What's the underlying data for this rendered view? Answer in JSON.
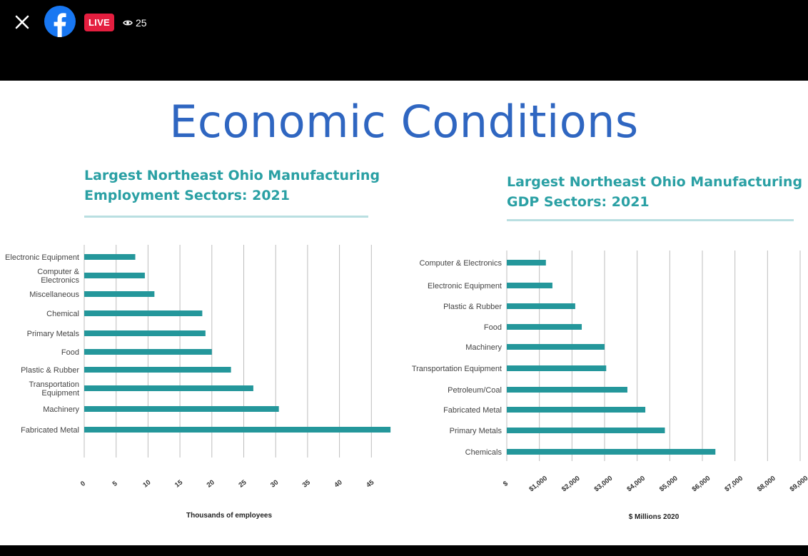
{
  "live_stream": {
    "live_badge": "LIVE",
    "viewer_count": "25"
  },
  "slide": {
    "title": "Economic Conditions"
  },
  "colors": {
    "bar": "#24979b",
    "grid": "#bdbdbd",
    "title": "#2f66c1",
    "subtitle": "#2aa0a4"
  },
  "icons": {
    "close": "close-icon",
    "logo": "facebook-logo-icon",
    "viewers": "eye-icon"
  },
  "chart_data": [
    {
      "type": "bar",
      "orientation": "horizontal",
      "title_lines": [
        "Largest Northeast Ohio Manufacturing",
        "Employment Sectors: 2021"
      ],
      "categories": [
        [
          "Electronic Equipment"
        ],
        [
          "Computer &",
          "Electronics"
        ],
        [
          "Miscellaneous"
        ],
        [
          "Chemical"
        ],
        [
          "Primary Metals"
        ],
        [
          "Food"
        ],
        [
          "Plastic & Rubber"
        ],
        [
          "Transportation",
          "Equipment"
        ],
        [
          "Machinery"
        ],
        [
          "Fabricated Metal"
        ]
      ],
      "values": [
        8,
        9.5,
        11,
        18.5,
        19,
        20,
        23,
        26.5,
        30.5,
        48
      ],
      "xlim": [
        0,
        50
      ],
      "ticks": [
        "0",
        "5",
        "10",
        "15",
        "20",
        "25",
        "30",
        "35",
        "40",
        "45"
      ],
      "xlabel": "Thousands of employees",
      "grid": true
    },
    {
      "type": "bar",
      "orientation": "horizontal",
      "title_lines": [
        "Largest Northeast Ohio Manufacturing",
        "GDP Sectors: 2021"
      ],
      "categories": [
        [
          "Computer & Electronics"
        ],
        [
          "Electronic Equipment"
        ],
        [
          "Plastic & Rubber"
        ],
        [
          "Food"
        ],
        [
          "Machinery"
        ],
        [
          "Transportation Equipment"
        ],
        [
          "Petroleum/Coal"
        ],
        [
          "Fabricated Metal"
        ],
        [
          "Primary Metals"
        ],
        [
          "Chemicals"
        ]
      ],
      "values": [
        1200,
        1400,
        2100,
        2300,
        3000,
        3050,
        3700,
        4250,
        4850,
        6400
      ],
      "xlim": [
        0,
        9000
      ],
      "ticks": [
        "$",
        "$1,000",
        "$2,000",
        "$3,000",
        "$4,000",
        "$5,000",
        "$6,000",
        "$7,000",
        "$8,000",
        "$9,000"
      ],
      "xlabel": "$ Millions 2020",
      "grid": true
    }
  ]
}
